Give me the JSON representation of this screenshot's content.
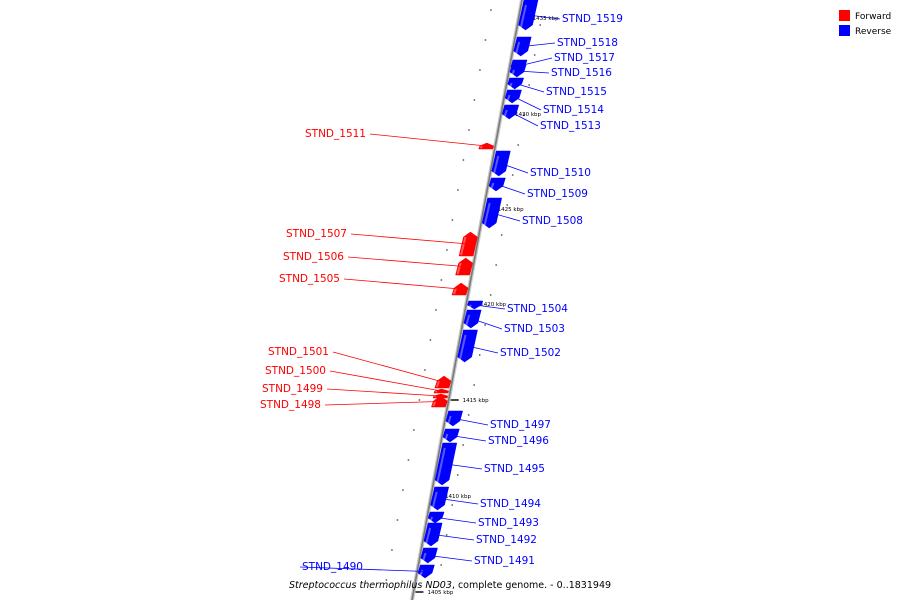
{
  "legend": [
    {
      "label": "Forward",
      "color": "#ff0000"
    },
    {
      "label": "Reverse",
      "color": "#0000ff"
    }
  ],
  "caption": {
    "organism": "Streptococcus thermophilus ND03",
    "rest": ", complete genome. - 0..1831949"
  },
  "colors": {
    "forward": "#ff0000",
    "reverse": "#0000ff",
    "backbone": "#8c8c8c",
    "tick": "#000000"
  },
  "ticks": [
    "1435 kbp",
    "1430 kbp",
    "1425 kbp",
    "1420 kbp",
    "1415 kbp",
    "1410 kbp",
    "1405 kbp"
  ],
  "genes": [
    {
      "name": "STND_1519",
      "strand": "reverse"
    },
    {
      "name": "STND_1518",
      "strand": "reverse"
    },
    {
      "name": "STND_1517",
      "strand": "reverse"
    },
    {
      "name": "STND_1516",
      "strand": "reverse"
    },
    {
      "name": "STND_1515",
      "strand": "reverse"
    },
    {
      "name": "STND_1514",
      "strand": "reverse"
    },
    {
      "name": "STND_1513",
      "strand": "reverse"
    },
    {
      "name": "STND_1511",
      "strand": "forward"
    },
    {
      "name": "STND_1510",
      "strand": "reverse"
    },
    {
      "name": "STND_1509",
      "strand": "reverse"
    },
    {
      "name": "STND_1508",
      "strand": "reverse"
    },
    {
      "name": "STND_1507",
      "strand": "forward"
    },
    {
      "name": "STND_1506",
      "strand": "forward"
    },
    {
      "name": "STND_1505",
      "strand": "forward"
    },
    {
      "name": "STND_1504",
      "strand": "reverse"
    },
    {
      "name": "STND_1503",
      "strand": "reverse"
    },
    {
      "name": "STND_1502",
      "strand": "reverse"
    },
    {
      "name": "STND_1501",
      "strand": "forward"
    },
    {
      "name": "STND_1500",
      "strand": "forward"
    },
    {
      "name": "STND_1499",
      "strand": "forward"
    },
    {
      "name": "STND_1498",
      "strand": "forward"
    },
    {
      "name": "STND_1497",
      "strand": "reverse"
    },
    {
      "name": "STND_1496",
      "strand": "reverse"
    },
    {
      "name": "STND_1495",
      "strand": "reverse"
    },
    {
      "name": "STND_1494",
      "strand": "reverse"
    },
    {
      "name": "STND_1493",
      "strand": "reverse"
    },
    {
      "name": "STND_1492",
      "strand": "reverse"
    },
    {
      "name": "STND_1491",
      "strand": "reverse"
    },
    {
      "name": "STND_1490",
      "strand": "reverse"
    }
  ]
}
